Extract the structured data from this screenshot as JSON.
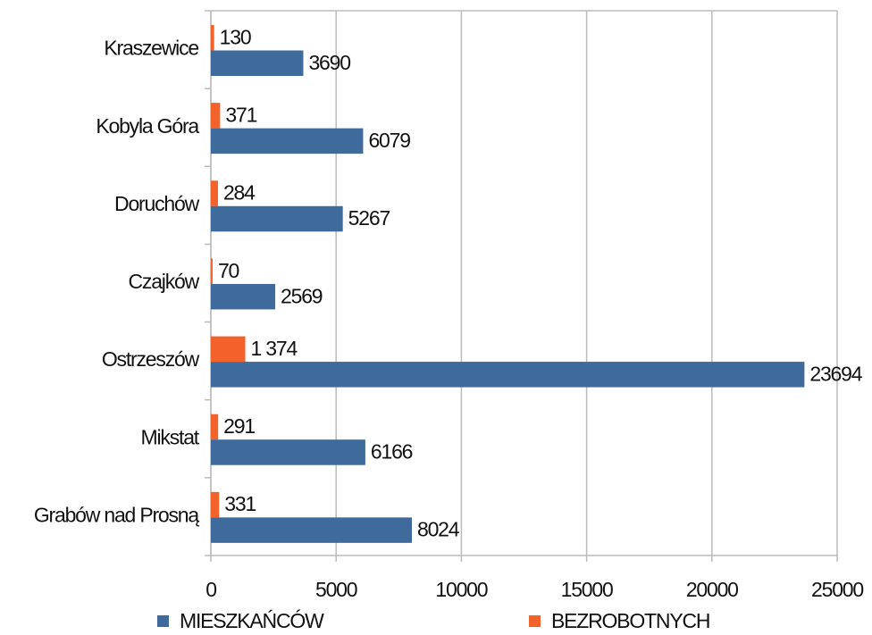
{
  "chart_data": {
    "type": "hbar",
    "categories": [
      "Kraszewice",
      "Kobyla Góra",
      "Doruchów",
      "Czajków",
      "Ostrzeszów",
      "Mikstat",
      "Grabów nad Prosną"
    ],
    "series": [
      {
        "name": "BEZROBOTNYCH",
        "color": "#f4622b",
        "values": [
          130,
          371,
          284,
          70,
          1374,
          291,
          331
        ],
        "value_labels": [
          "130",
          "371",
          "284",
          "70",
          "1 374",
          "291",
          "331"
        ]
      },
      {
        "name": "MIESZKAŃCÓW",
        "color": "#3f6a9c",
        "values": [
          3690,
          6079,
          5267,
          2569,
          23694,
          6166,
          8024
        ]
      }
    ],
    "xlim": [
      0,
      25000
    ],
    "xticks": [
      0,
      5000,
      10000,
      15000,
      20000,
      25000
    ],
    "grid": true,
    "legend": "bottom"
  }
}
